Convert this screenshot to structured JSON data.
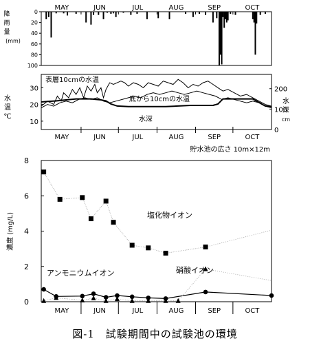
{
  "caption": "図-1　試験期間中の試験池の環境",
  "chart_data": [
    {
      "type": "bar",
      "ylabel": "降雨量 (mm)",
      "ylabel_chars": [
        "降",
        "雨",
        "量"
      ],
      "ylabel_unit": "(mm)",
      "yticks": [
        "0",
        "20",
        "40",
        "60",
        "80",
        "100"
      ],
      "ylim": [
        0,
        100
      ],
      "inverted": true,
      "months": [
        "MAY",
        "JUN",
        "JUL",
        "AUG",
        "SEP",
        "OCT"
      ],
      "x_range_days": [
        120,
        305
      ],
      "days": [
        124,
        126,
        128,
        132,
        138,
        141,
        148,
        156,
        160,
        162,
        166,
        170,
        173,
        176,
        178,
        180,
        186,
        192,
        197,
        205,
        214,
        223,
        236,
        242,
        247,
        252,
        258,
        261,
        263,
        264,
        265,
        266,
        267,
        268,
        269,
        270,
        272,
        276,
        290,
        291,
        292,
        293,
        296,
        300
      ],
      "rain_mm": [
        14,
        10,
        48,
        3,
        3,
        7,
        4,
        20,
        24,
        6,
        6,
        14,
        2,
        4,
        3,
        10,
        2,
        6,
        4,
        14,
        12,
        14,
        4,
        10,
        4,
        6,
        20,
        12,
        100,
        80,
        98,
        10,
        30,
        14,
        20,
        16,
        4,
        6,
        14,
        20,
        80,
        22,
        6,
        4
      ]
    },
    {
      "type": "line",
      "ylabel_left_chars": [
        "水",
        "温"
      ],
      "ylabel_left_unit": "℃",
      "ylabel_right_chars": [
        "水",
        "深"
      ],
      "ylabel_right_unit": "cm",
      "yticks_left": [
        "10",
        "20",
        "30"
      ],
      "ylim_left": [
        5,
        38
      ],
      "yticks_right": [
        "0",
        "100",
        "200"
      ],
      "ylim_right": [
        0,
        270
      ],
      "months": [
        "MAY",
        "JUN",
        "JUL",
        "AUG",
        "SEP",
        "OCT"
      ],
      "x_range_days": [
        120,
        305
      ],
      "series": [
        {
          "name": "表層10cmの水温",
          "x": [
            120,
            125,
            130,
            133,
            136,
            138,
            142,
            145,
            148,
            151,
            154,
            157,
            160,
            163,
            165,
            168,
            170,
            172,
            175,
            178,
            181,
            184,
            187,
            190,
            194,
            198,
            202,
            206,
            210,
            214,
            218,
            222,
            226,
            230,
            234,
            238,
            242,
            246,
            250,
            254,
            258,
            262,
            266,
            270,
            275,
            280,
            285,
            290,
            295,
            300,
            305
          ],
          "y": [
            19,
            22,
            20,
            25,
            22,
            27,
            24,
            29,
            26,
            30,
            24,
            31,
            28,
            32,
            27,
            30,
            24,
            29,
            33,
            32,
            33,
            34,
            33,
            31,
            33,
            32,
            30,
            33,
            32,
            31,
            34,
            33,
            32,
            35,
            33,
            30,
            32,
            31,
            33,
            34,
            32,
            30,
            28,
            29,
            27,
            25,
            26,
            24,
            22,
            20,
            19
          ]
        },
        {
          "name": "底から10cmの水温",
          "x": [
            120,
            125,
            130,
            135,
            140,
            145,
            150,
            155,
            160,
            165,
            170,
            175,
            180,
            185,
            190,
            195,
            200,
            205,
            210,
            215,
            220,
            225,
            230,
            235,
            240,
            245,
            250,
            255,
            260,
            265,
            270,
            275,
            280,
            285,
            290,
            295,
            300,
            305
          ],
          "y": [
            18,
            20,
            19,
            21,
            22,
            21,
            23,
            24,
            23,
            24,
            22,
            21,
            22,
            23,
            24,
            25,
            24,
            26,
            27,
            26,
            27,
            28,
            27,
            26,
            27,
            28,
            27,
            26,
            25,
            23,
            24,
            23,
            22,
            21,
            22,
            21,
            19,
            18
          ]
        },
        {
          "name": "水深",
          "x": [
            120,
            126,
            132,
            140,
            148,
            160,
            168,
            172,
            176,
            181,
            190,
            200,
            210,
            220,
            230,
            240,
            250,
            258,
            262,
            266,
            270,
            280,
            290,
            300,
            305
          ],
          "y": [
            135,
            138,
            140,
            145,
            150,
            150,
            145,
            140,
            125,
            115,
            112,
            112,
            112,
            112,
            115,
            118,
            118,
            118,
            125,
            150,
            150,
            150,
            150,
            115,
            112
          ]
        }
      ],
      "annotations": [
        "表層10cmの水温",
        "底から10cmの水温",
        "水深"
      ],
      "note": "貯水池の広さ  10m×12m"
    },
    {
      "type": "line",
      "ylabel": "濃度 (mg/L)",
      "yticks": [
        "0",
        "2",
        "4",
        "6",
        "8"
      ],
      "ylim": [
        0,
        8
      ],
      "categories": [
        "MAY",
        "JUN",
        "JUL",
        "AUG",
        "SEP",
        "OCT"
      ],
      "x_range_days": [
        120,
        305
      ],
      "series": [
        {
          "name": "塩化物イオン",
          "marker": "square",
          "x": [
            122,
            135,
            153,
            160,
            172,
            178,
            193,
            206,
            220,
            252
          ],
          "y": [
            7.35,
            5.8,
            5.9,
            4.7,
            5.7,
            4.5,
            3.2,
            3.05,
            2.75,
            3.1
          ],
          "dotted_x": [
            252,
            305
          ],
          "dotted_y": [
            3.1,
            4.05
          ]
        },
        {
          "name": "アンモニウムイオン",
          "marker": "circle",
          "x": [
            122,
            132,
            153,
            162,
            172,
            181,
            193,
            206,
            220,
            252,
            305
          ],
          "y": [
            0.7,
            0.3,
            0.32,
            0.45,
            0.25,
            0.35,
            0.28,
            0.22,
            0.18,
            0.55,
            0.35
          ]
        },
        {
          "name": "硝酸イオン",
          "marker": "triangle",
          "x": [
            122,
            132,
            153,
            162,
            172,
            181,
            193,
            206,
            220,
            230
          ],
          "y": [
            0.05,
            0.22,
            0.08,
            0.2,
            0.05,
            0.15,
            0.05,
            0.05,
            0.05,
            0.05
          ],
          "dotted_x": [
            230,
            252,
            305
          ],
          "dotted_y": [
            0.05,
            1.85,
            1.2
          ]
        }
      ],
      "annotations": [
        "塩化物イオン",
        "アンモニウムイオン",
        "硝酸イオン"
      ]
    }
  ]
}
